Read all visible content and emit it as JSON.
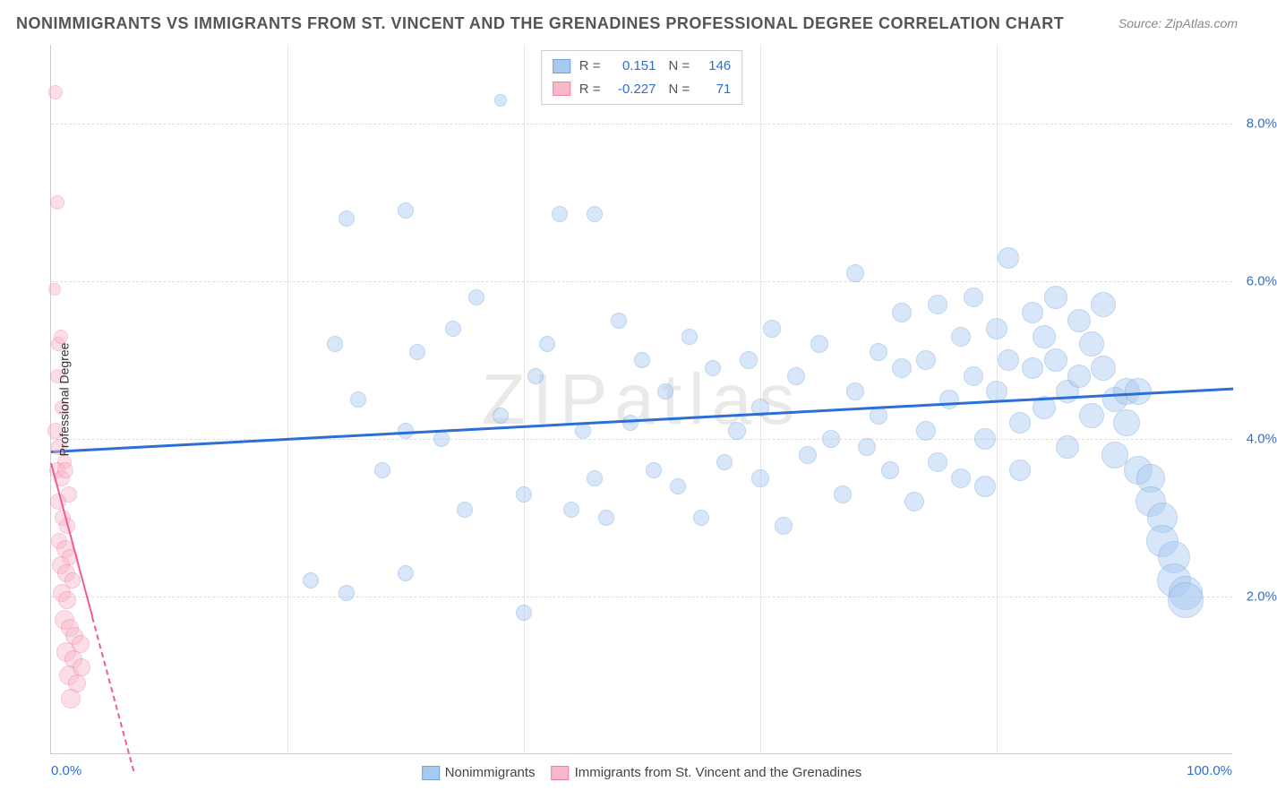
{
  "title": "NONIMMIGRANTS VS IMMIGRANTS FROM ST. VINCENT AND THE GRENADINES PROFESSIONAL DEGREE CORRELATION CHART",
  "source": "Source: ZipAtlas.com",
  "watermark": "ZIPatlas",
  "ylabel": "Professional Degree",
  "chart": {
    "type": "scatter",
    "xlim": [
      0,
      100
    ],
    "ylim": [
      0,
      9
    ],
    "ytick_labels": [
      "2.0%",
      "4.0%",
      "6.0%",
      "8.0%"
    ],
    "ytick_values": [
      2,
      4,
      6,
      8
    ],
    "xtick_labels_ends": {
      "left": "0.0%",
      "right": "100.0%"
    },
    "xtick_positions": [
      20,
      40,
      60,
      80
    ],
    "grid_color": "#dddddd",
    "background_color": "#ffffff",
    "series": [
      {
        "name": "Nonimmigrants",
        "color_fill": "#a8c9f0",
        "color_stroke": "#6fa3de",
        "fill_opacity": 0.45,
        "trend": {
          "x1": 0,
          "y1": 3.85,
          "x2": 100,
          "y2": 4.65,
          "color": "#2b6fd6",
          "width": 2.5,
          "dashed": false
        },
        "R": "0.151",
        "N": "146",
        "points": [
          {
            "x": 25,
            "y": 6.8,
            "r": 9
          },
          {
            "x": 30,
            "y": 6.9,
            "r": 9
          },
          {
            "x": 43,
            "y": 6.85,
            "r": 9
          },
          {
            "x": 46,
            "y": 6.85,
            "r": 9
          },
          {
            "x": 38,
            "y": 8.3,
            "r": 7
          },
          {
            "x": 22,
            "y": 2.2,
            "r": 9
          },
          {
            "x": 25,
            "y": 2.05,
            "r": 9
          },
          {
            "x": 30,
            "y": 2.3,
            "r": 9
          },
          {
            "x": 40,
            "y": 1.8,
            "r": 9
          },
          {
            "x": 35,
            "y": 3.1,
            "r": 9
          },
          {
            "x": 28,
            "y": 3.6,
            "r": 9
          },
          {
            "x": 30,
            "y": 4.1,
            "r": 9
          },
          {
            "x": 31,
            "y": 5.1,
            "r": 9
          },
          {
            "x": 34,
            "y": 5.4,
            "r": 9
          },
          {
            "x": 33,
            "y": 4.0,
            "r": 9
          },
          {
            "x": 36,
            "y": 5.8,
            "r": 9
          },
          {
            "x": 38,
            "y": 4.3,
            "r": 9
          },
          {
            "x": 40,
            "y": 3.3,
            "r": 9
          },
          {
            "x": 41,
            "y": 4.8,
            "r": 9
          },
          {
            "x": 42,
            "y": 5.2,
            "r": 9
          },
          {
            "x": 44,
            "y": 3.1,
            "r": 9
          },
          {
            "x": 45,
            "y": 4.1,
            "r": 9
          },
          {
            "x": 46,
            "y": 3.5,
            "r": 9
          },
          {
            "x": 47,
            "y": 3.0,
            "r": 9
          },
          {
            "x": 48,
            "y": 5.5,
            "r": 9
          },
          {
            "x": 49,
            "y": 4.2,
            "r": 9
          },
          {
            "x": 50,
            "y": 5.0,
            "r": 9
          },
          {
            "x": 51,
            "y": 3.6,
            "r": 9
          },
          {
            "x": 52,
            "y": 4.6,
            "r": 9
          },
          {
            "x": 53,
            "y": 3.4,
            "r": 9
          },
          {
            "x": 54,
            "y": 5.3,
            "r": 9
          },
          {
            "x": 55,
            "y": 3.0,
            "r": 9
          },
          {
            "x": 56,
            "y": 4.9,
            "r": 9
          },
          {
            "x": 57,
            "y": 3.7,
            "r": 9
          },
          {
            "x": 58,
            "y": 4.1,
            "r": 10
          },
          {
            "x": 59,
            "y": 5.0,
            "r": 10
          },
          {
            "x": 60,
            "y": 3.5,
            "r": 10
          },
          {
            "x": 60,
            "y": 4.4,
            "r": 10
          },
          {
            "x": 61,
            "y": 5.4,
            "r": 10
          },
          {
            "x": 62,
            "y": 2.9,
            "r": 10
          },
          {
            "x": 63,
            "y": 4.8,
            "r": 10
          },
          {
            "x": 64,
            "y": 3.8,
            "r": 10
          },
          {
            "x": 65,
            "y": 5.2,
            "r": 10
          },
          {
            "x": 66,
            "y": 4.0,
            "r": 10
          },
          {
            "x": 67,
            "y": 3.3,
            "r": 10
          },
          {
            "x": 68,
            "y": 6.1,
            "r": 10
          },
          {
            "x": 68,
            "y": 4.6,
            "r": 10
          },
          {
            "x": 69,
            "y": 3.9,
            "r": 10
          },
          {
            "x": 70,
            "y": 5.1,
            "r": 10
          },
          {
            "x": 70,
            "y": 4.3,
            "r": 10
          },
          {
            "x": 71,
            "y": 3.6,
            "r": 10
          },
          {
            "x": 72,
            "y": 5.6,
            "r": 11
          },
          {
            "x": 72,
            "y": 4.9,
            "r": 11
          },
          {
            "x": 73,
            "y": 3.2,
            "r": 11
          },
          {
            "x": 74,
            "y": 5.0,
            "r": 11
          },
          {
            "x": 74,
            "y": 4.1,
            "r": 11
          },
          {
            "x": 75,
            "y": 5.7,
            "r": 11
          },
          {
            "x": 75,
            "y": 3.7,
            "r": 11
          },
          {
            "x": 76,
            "y": 4.5,
            "r": 11
          },
          {
            "x": 77,
            "y": 5.3,
            "r": 11
          },
          {
            "x": 77,
            "y": 3.5,
            "r": 11
          },
          {
            "x": 78,
            "y": 4.8,
            "r": 11
          },
          {
            "x": 78,
            "y": 5.8,
            "r": 11
          },
          {
            "x": 79,
            "y": 4.0,
            "r": 12
          },
          {
            "x": 79,
            "y": 3.4,
            "r": 12
          },
          {
            "x": 80,
            "y": 5.4,
            "r": 12
          },
          {
            "x": 80,
            "y": 4.6,
            "r": 12
          },
          {
            "x": 81,
            "y": 6.3,
            "r": 12
          },
          {
            "x": 81,
            "y": 5.0,
            "r": 12
          },
          {
            "x": 82,
            "y": 4.2,
            "r": 12
          },
          {
            "x": 82,
            "y": 3.6,
            "r": 12
          },
          {
            "x": 83,
            "y": 5.6,
            "r": 12
          },
          {
            "x": 83,
            "y": 4.9,
            "r": 12
          },
          {
            "x": 84,
            "y": 5.3,
            "r": 13
          },
          {
            "x": 84,
            "y": 4.4,
            "r": 13
          },
          {
            "x": 85,
            "y": 5.8,
            "r": 13
          },
          {
            "x": 85,
            "y": 5.0,
            "r": 13
          },
          {
            "x": 86,
            "y": 4.6,
            "r": 13
          },
          {
            "x": 86,
            "y": 3.9,
            "r": 13
          },
          {
            "x": 87,
            "y": 5.5,
            "r": 13
          },
          {
            "x": 87,
            "y": 4.8,
            "r": 13
          },
          {
            "x": 88,
            "y": 5.2,
            "r": 14
          },
          {
            "x": 88,
            "y": 4.3,
            "r": 14
          },
          {
            "x": 89,
            "y": 5.7,
            "r": 14
          },
          {
            "x": 89,
            "y": 4.9,
            "r": 14
          },
          {
            "x": 90,
            "y": 4.5,
            "r": 14
          },
          {
            "x": 90,
            "y": 3.8,
            "r": 15
          },
          {
            "x": 91,
            "y": 4.6,
            "r": 15
          },
          {
            "x": 91,
            "y": 4.2,
            "r": 15
          },
          {
            "x": 92,
            "y": 4.6,
            "r": 15
          },
          {
            "x": 92,
            "y": 3.6,
            "r": 16
          },
          {
            "x": 93,
            "y": 3.5,
            "r": 16
          },
          {
            "x": 93,
            "y": 3.2,
            "r": 17
          },
          {
            "x": 94,
            "y": 3.0,
            "r": 17
          },
          {
            "x": 94,
            "y": 2.7,
            "r": 18
          },
          {
            "x": 95,
            "y": 2.5,
            "r": 18
          },
          {
            "x": 95,
            "y": 2.2,
            "r": 19
          },
          {
            "x": 96,
            "y": 2.05,
            "r": 19
          },
          {
            "x": 96,
            "y": 1.95,
            "r": 20
          },
          {
            "x": 26,
            "y": 4.5,
            "r": 9
          },
          {
            "x": 24,
            "y": 5.2,
            "r": 9
          }
        ]
      },
      {
        "name": "Immigrants from St. Vincent and the Grenadines",
        "color_fill": "#f8b8c8",
        "color_stroke": "#ef7fa5",
        "fill_opacity": 0.45,
        "trend": {
          "x1": 0,
          "y1": 3.7,
          "x2": 7,
          "y2": -0.2,
          "color": "#ef5d8a",
          "width": 2,
          "dashed": true
        },
        "trend_solid_end_x": 3.5,
        "R": "-0.227",
        "N": "71",
        "points": [
          {
            "x": 0.4,
            "y": 8.4,
            "r": 8
          },
          {
            "x": 0.5,
            "y": 7.0,
            "r": 8
          },
          {
            "x": 0.3,
            "y": 5.9,
            "r": 7
          },
          {
            "x": 0.6,
            "y": 5.2,
            "r": 8
          },
          {
            "x": 0.8,
            "y": 5.3,
            "r": 8
          },
          {
            "x": 0.5,
            "y": 4.8,
            "r": 8
          },
          {
            "x": 0.9,
            "y": 4.4,
            "r": 8
          },
          {
            "x": 0.4,
            "y": 4.1,
            "r": 9
          },
          {
            "x": 0.7,
            "y": 3.9,
            "r": 9
          },
          {
            "x": 1.1,
            "y": 3.7,
            "r": 8
          },
          {
            "x": 0.5,
            "y": 3.6,
            "r": 9
          },
          {
            "x": 0.9,
            "y": 3.5,
            "r": 9
          },
          {
            "x": 1.2,
            "y": 3.6,
            "r": 9
          },
          {
            "x": 1.5,
            "y": 3.3,
            "r": 9
          },
          {
            "x": 0.6,
            "y": 3.2,
            "r": 9
          },
          {
            "x": 1.0,
            "y": 3.0,
            "r": 9
          },
          {
            "x": 1.4,
            "y": 2.9,
            "r": 9
          },
          {
            "x": 0.7,
            "y": 2.7,
            "r": 9
          },
          {
            "x": 1.2,
            "y": 2.6,
            "r": 10
          },
          {
            "x": 1.6,
            "y": 2.5,
            "r": 9
          },
          {
            "x": 0.8,
            "y": 2.4,
            "r": 10
          },
          {
            "x": 1.3,
            "y": 2.3,
            "r": 10
          },
          {
            "x": 1.8,
            "y": 2.2,
            "r": 9
          },
          {
            "x": 0.9,
            "y": 2.05,
            "r": 10
          },
          {
            "x": 1.4,
            "y": 1.95,
            "r": 10
          },
          {
            "x": 1.1,
            "y": 1.7,
            "r": 11
          },
          {
            "x": 1.6,
            "y": 1.6,
            "r": 10
          },
          {
            "x": 2.0,
            "y": 1.5,
            "r": 10
          },
          {
            "x": 1.3,
            "y": 1.3,
            "r": 11
          },
          {
            "x": 1.9,
            "y": 1.2,
            "r": 10
          },
          {
            "x": 2.5,
            "y": 1.4,
            "r": 10
          },
          {
            "x": 1.5,
            "y": 1.0,
            "r": 11
          },
          {
            "x": 2.2,
            "y": 0.9,
            "r": 10
          },
          {
            "x": 1.7,
            "y": 0.7,
            "r": 11
          },
          {
            "x": 2.6,
            "y": 1.1,
            "r": 10
          }
        ]
      }
    ]
  },
  "legend": {
    "rows": [
      {
        "swatch_fill": "#a8c9f0",
        "swatch_stroke": "#6fa3de",
        "R_label": "R =",
        "R": "0.151",
        "N_label": "N =",
        "N": "146"
      },
      {
        "swatch_fill": "#f8b8c8",
        "swatch_stroke": "#ef7fa5",
        "R_label": "R =",
        "R": "-0.227",
        "N_label": "N =",
        "N": "71"
      }
    ]
  },
  "bottom_legend": [
    {
      "swatch_fill": "#a8c9f0",
      "swatch_stroke": "#6fa3de",
      "label": "Nonimmigrants"
    },
    {
      "swatch_fill": "#f8b8c8",
      "swatch_stroke": "#ef7fa5",
      "label": "Immigrants from St. Vincent and the Grenadines"
    }
  ]
}
